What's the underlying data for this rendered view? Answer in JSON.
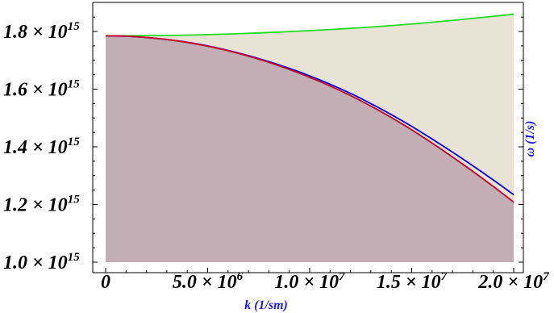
{
  "chart_data": {
    "type": "area",
    "title": "",
    "xlabel": "k (1/sm)",
    "ylabel": "ω (1/s)",
    "xlim": [
      0,
      20000000.0
    ],
    "ylim": [
      1000000000000000.0,
      1870000000000000.0
    ],
    "grid": false,
    "x_ticks": [
      {
        "value": 0,
        "mantissa": "0",
        "exponent": ""
      },
      {
        "value": 5000000.0,
        "mantissa": "5.0 × 10",
        "exponent": "6"
      },
      {
        "value": 10000000.0,
        "mantissa": "1.0 × 10",
        "exponent": "7"
      },
      {
        "value": 15000000.0,
        "mantissa": "1.5 × 10",
        "exponent": "7"
      },
      {
        "value": 20000000.0,
        "mantissa": "2.0 × 10",
        "exponent": "7"
      }
    ],
    "y_ticks": [
      {
        "value": 1000000000000000.0,
        "mantissa": "1.0 × 10",
        "exponent": "15"
      },
      {
        "value": 1200000000000000.0,
        "mantissa": "1.2 × 10",
        "exponent": "15"
      },
      {
        "value": 1400000000000000.0,
        "mantissa": "1.4 × 10",
        "exponent": "15"
      },
      {
        "value": 1600000000000000.0,
        "mantissa": "1.6 × 10",
        "exponent": "15"
      },
      {
        "value": 1800000000000000.0,
        "mantissa": "1.8 × 10",
        "exponent": "15"
      }
    ],
    "x": [
      0,
      2500000.0,
      5000000.0,
      7500000.0,
      10000000.0,
      12500000.0,
      15000000.0,
      17500000.0,
      20000000.0
    ],
    "series": [
      {
        "color": "#22dd22",
        "values": [
          1785000000000000.0,
          1786000000000000.0,
          1789000000000000.0,
          1795000000000000.0,
          1803000000000000.0,
          1813000000000000.0,
          1826000000000000.0,
          1842000000000000.0,
          1860000000000000.0
        ]
      },
      {
        "color": "#0000ff",
        "values": [
          1785000000000000.0,
          1776000000000000.0,
          1750000000000000.0,
          1706000000000000.0,
          1646000000000000.0,
          1568000000000000.0,
          1471000000000000.0,
          1358000000000000.0,
          1234000000000000.0
        ]
      },
      {
        "color": "#cc0022",
        "values": [
          1785000000000000.0,
          1776000000000000.0,
          1749000000000000.0,
          1704000000000000.0,
          1641000000000000.0,
          1560000000000000.0,
          1459000000000000.0,
          1340000000000000.0,
          1208000000000000.0
        ]
      }
    ],
    "fill_colors": {
      "upper_band": "#e9e3d6",
      "lower_region": "#c2aeb4"
    }
  }
}
